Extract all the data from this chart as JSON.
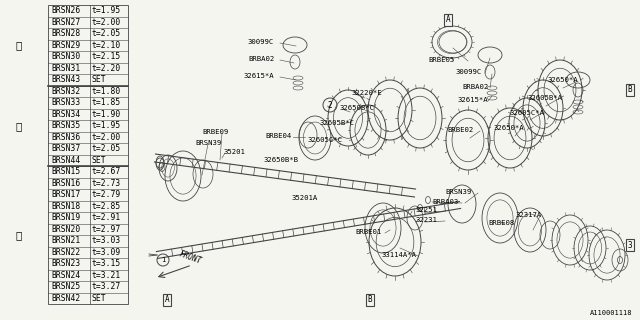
{
  "bg_color": "#f5f5f0",
  "line_color": "#444444",
  "text_color": "#000000",
  "diagram_number": "A110001118",
  "table_bg": "#f5f5f0",
  "table": {
    "group1_label": "①",
    "group1_rows": [
      [
        "BRSN26",
        "t=1.95"
      ],
      [
        "BRSN27",
        "t=2.00"
      ],
      [
        "BRSN28",
        "t=2.05"
      ],
      [
        "BRSN29",
        "t=2.10"
      ],
      [
        "BRSN30",
        "t=2.15"
      ],
      [
        "BRSN31",
        "t=2.20"
      ],
      [
        "BRSN43",
        "SET"
      ]
    ],
    "group2_label": "②",
    "group2_rows": [
      [
        "BRSN32",
        "t=1.80"
      ],
      [
        "BRSN33",
        "t=1.85"
      ],
      [
        "BRSN34",
        "t=1.90"
      ],
      [
        "BRSN35",
        "t=1.95"
      ],
      [
        "BRSN36",
        "t=2.00"
      ],
      [
        "BRSN37",
        "t=2.05"
      ],
      [
        "BRSN44",
        "SET"
      ]
    ],
    "group3_label": "③",
    "group3_rows": [
      [
        "BRSN15",
        "t=2.67"
      ],
      [
        "BRSN16",
        "t=2.73"
      ],
      [
        "BRSN17",
        "t=2.79"
      ],
      [
        "BRSN18",
        "t=2.85"
      ],
      [
        "BRSN19",
        "t=2.91"
      ],
      [
        "BRSN20",
        "t=2.97"
      ],
      [
        "BRSN21",
        "t=3.03"
      ],
      [
        "BRSN22",
        "t=3.09"
      ],
      [
        "BRSN23",
        "t=3.15"
      ],
      [
        "BRSN24",
        "t=3.21"
      ],
      [
        "BRSN25",
        "t=3.27"
      ],
      [
        "BRSN42",
        "SET"
      ]
    ]
  }
}
